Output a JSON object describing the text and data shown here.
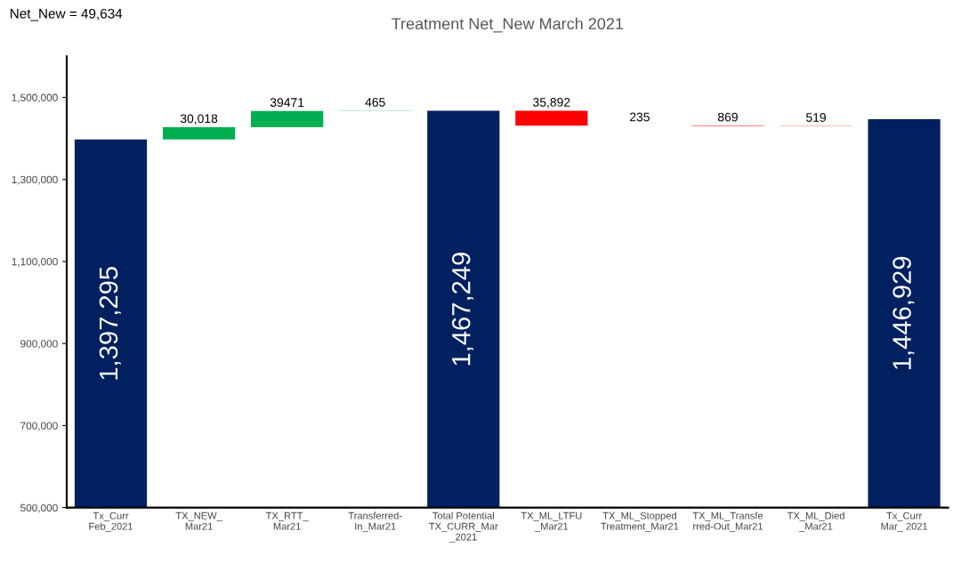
{
  "chart_data": {
    "type": "bar",
    "title": "Treatment Net_New March 2021",
    "annotations": [
      "Net_New = 49,634"
    ],
    "categories": [
      "Tx_Curr\nFeb_2021",
      "TX_NEW_\nMar21",
      "TX_RTT_\nMar21",
      "Transferred-\nIn_Mar21",
      "Total Potential\nTX_CURR_Mar\n_2021",
      "TX_ML_LTFU\n_Mar21",
      "TX_ML_Stopped\nTreatment_Mar21",
      "TX_ML_Transfe\nrred-Out_Mar21",
      "TX_ML_Died\n_Mar21",
      "Tx_Curr\nMar_ 2021"
    ],
    "values": [
      1397295,
      30018,
      39471,
      465,
      1467249,
      -35892,
      -235,
      -869,
      -519,
      1446929
    ],
    "base": [
      null,
      1397295,
      1427313,
      1466784,
      null,
      1467249,
      1431357,
      1431122,
      1430253,
      null
    ],
    "colors": [
      "#002060",
      "#00b050",
      "#00b050",
      "#00b050",
      "#002060",
      "#ff0000",
      "#ff0000",
      "#ff0000",
      "#ff0000",
      "#002060"
    ],
    "value_labels": [
      "1,397,295",
      "30,018",
      "39471",
      "465",
      "1,467,249",
      "35,892",
      "235",
      "869",
      "519",
      "1,446,929"
    ],
    "ylim": [
      500000,
      1600000
    ],
    "yticks": [
      {
        "value": 500000,
        "label": "500,000"
      },
      {
        "value": 700000,
        "label": "700,000"
      },
      {
        "value": 900000,
        "label": "900,000"
      },
      {
        "value": 1100000,
        "label": "1,100,000"
      },
      {
        "value": 1300000,
        "label": "1,300,000"
      },
      {
        "value": 1500000,
        "label": "1,500,000"
      }
    ],
    "grid": false,
    "legend": false
  }
}
